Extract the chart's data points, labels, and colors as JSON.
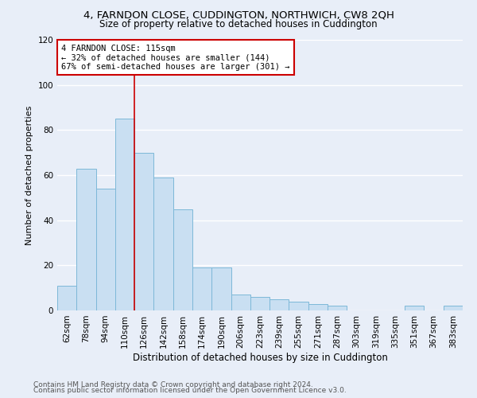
{
  "title": "4, FARNDON CLOSE, CUDDINGTON, NORTHWICH, CW8 2QH",
  "subtitle": "Size of property relative to detached houses in Cuddington",
  "xlabel": "Distribution of detached houses by size in Cuddington",
  "ylabel": "Number of detached properties",
  "bar_labels": [
    "62sqm",
    "78sqm",
    "94sqm",
    "110sqm",
    "126sqm",
    "142sqm",
    "158sqm",
    "174sqm",
    "190sqm",
    "206sqm",
    "223sqm",
    "239sqm",
    "255sqm",
    "271sqm",
    "287sqm",
    "303sqm",
    "319sqm",
    "335sqm",
    "351sqm",
    "367sqm",
    "383sqm"
  ],
  "bar_heights": [
    11,
    63,
    54,
    85,
    70,
    59,
    45,
    19,
    19,
    7,
    6,
    5,
    4,
    3,
    2,
    0,
    0,
    0,
    2,
    0,
    2
  ],
  "bar_color": "#c9dff2",
  "bar_edge_color": "#7db8d8",
  "vline_color": "#cc0000",
  "vline_x": 3.5,
  "annotation_title": "4 FARNDON CLOSE: 115sqm",
  "annotation_line1": "← 32% of detached houses are smaller (144)",
  "annotation_line2": "67% of semi-detached houses are larger (301) →",
  "annotation_box_color": "#ffffff",
  "annotation_box_edge": "#cc0000",
  "ylim": [
    0,
    120
  ],
  "yticks": [
    0,
    20,
    40,
    60,
    80,
    100,
    120
  ],
  "footnote1": "Contains HM Land Registry data © Crown copyright and database right 2024.",
  "footnote2": "Contains public sector information licensed under the Open Government Licence v3.0.",
  "background_color": "#e8eef8",
  "grid_color": "#ffffff",
  "title_fontsize": 9.5,
  "subtitle_fontsize": 8.5,
  "xlabel_fontsize": 8.5,
  "ylabel_fontsize": 8.0,
  "tick_fontsize": 7.5,
  "footnote_fontsize": 6.5
}
